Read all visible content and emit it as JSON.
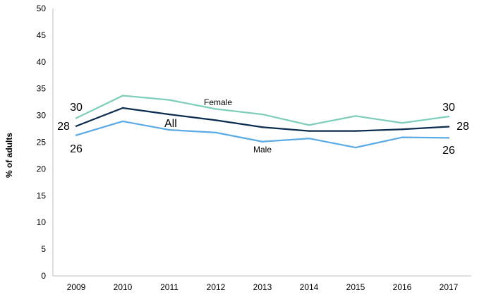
{
  "chart_data": {
    "type": "line",
    "title": "",
    "xlabel": "",
    "ylabel": "% of adults",
    "ylim": [
      0,
      50
    ],
    "yticks": [
      0,
      5,
      10,
      15,
      20,
      25,
      30,
      35,
      40,
      45,
      50
    ],
    "grid": false,
    "categories": [
      "2009",
      "2010",
      "2011",
      "2012",
      "2013",
      "2014",
      "2015",
      "2016",
      "2017"
    ],
    "series": [
      {
        "name": "Female",
        "color": "#7fcdbb",
        "values": [
          29.5,
          33.7,
          32.9,
          31.2,
          30.2,
          28.2,
          29.9,
          28.6,
          29.8
        ],
        "start_label": "30",
        "end_label": "30"
      },
      {
        "name": "All",
        "color": "#0b2c4f",
        "values": [
          28.0,
          31.4,
          30.2,
          29.1,
          27.8,
          27.1,
          27.1,
          27.4,
          27.9
        ],
        "start_label": "28",
        "end_label": "28"
      },
      {
        "name": "Male",
        "color": "#5aaae6",
        "values": [
          26.3,
          28.9,
          27.3,
          26.8,
          25.1,
          25.7,
          24.0,
          25.9,
          25.8
        ],
        "start_label": "26",
        "end_label": "26"
      }
    ]
  }
}
